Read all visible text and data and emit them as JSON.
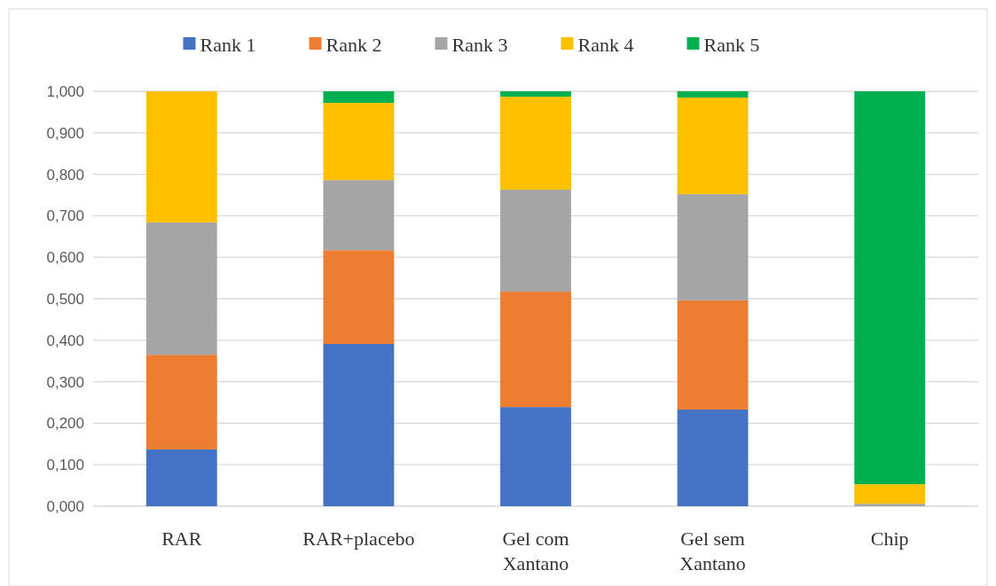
{
  "chart_data": {
    "type": "bar",
    "stacked": true,
    "categories": [
      "RAR",
      "RAR+placebo",
      "Gel com Xantano",
      "Gel sem Xantano",
      "Chip"
    ],
    "series": [
      {
        "name": "Rank 1",
        "color": "#4472c4",
        "values": [
          0.137,
          0.391,
          0.239,
          0.233,
          0
        ]
      },
      {
        "name": "Rank 2",
        "color": "#ed7d31",
        "values": [
          0.228,
          0.226,
          0.278,
          0.263,
          0
        ]
      },
      {
        "name": "Rank 3",
        "color": "#a5a5a5",
        "values": [
          0.319,
          0.169,
          0.246,
          0.256,
          0.006
        ]
      },
      {
        "name": "Rank 4",
        "color": "#ffc000",
        "values": [
          0.316,
          0.186,
          0.224,
          0.233,
          0.047
        ]
      },
      {
        "name": "Rank 5",
        "color": "#00b050",
        "values": [
          0,
          0.028,
          0.013,
          0.015,
          0.947
        ]
      }
    ],
    "ylim": [
      0,
      1
    ],
    "yticks": [
      {
        "value": 0,
        "label": "0,000"
      },
      {
        "value": 0.1,
        "label": "0,100"
      },
      {
        "value": 0.2,
        "label": "0,200"
      },
      {
        "value": 0.3,
        "label": "0,300"
      },
      {
        "value": 0.4,
        "label": "0,400"
      },
      {
        "value": 0.5,
        "label": "0,500"
      },
      {
        "value": 0.6,
        "label": "0,600"
      },
      {
        "value": 0.7,
        "label": "0,700"
      },
      {
        "value": 0.8,
        "label": "0,800"
      },
      {
        "value": 0.9,
        "label": "0,900"
      },
      {
        "value": 1,
        "label": "1,000"
      }
    ],
    "grid": "y",
    "legend": "top"
  }
}
